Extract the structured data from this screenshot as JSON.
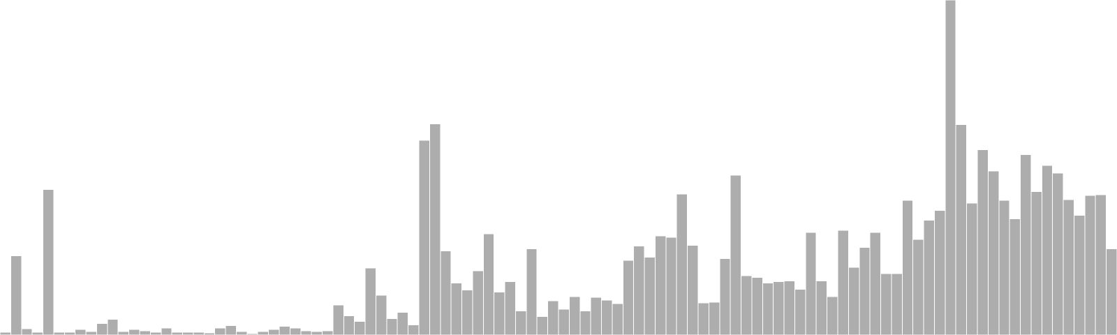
{
  "chart_data": {
    "type": "bar",
    "bar_color": "#adadad",
    "bar_stroke": "#ffffff",
    "ylim": [
      0,
      470
    ],
    "grid": false,
    "legend": "none",
    "values": [
      4,
      111,
      9,
      4,
      204,
      4,
      4,
      8,
      5,
      16,
      22,
      5,
      8,
      6,
      4,
      10,
      4,
      4,
      4,
      3,
      10,
      13,
      5,
      2,
      5,
      8,
      12,
      10,
      6,
      5,
      6,
      42,
      27,
      19,
      94,
      56,
      23,
      32,
      14,
      273,
      296,
      118,
      73,
      63,
      90,
      142,
      60,
      75,
      34,
      121,
      26,
      48,
      36,
      54,
      34,
      53,
      49,
      44,
      105,
      125,
      109,
      139,
      137,
      198,
      126,
      45,
      46,
      107,
      224,
      83,
      81,
      73,
      75,
      76,
      64,
      144,
      76,
      54,
      147,
      95,
      123,
      144,
      86,
      86,
      189,
      134,
      161,
      175,
      470,
      295,
      185,
      260,
      230,
      189,
      163,
      253,
      201,
      238,
      227,
      190,
      168,
      196,
      197,
      121
    ]
  }
}
